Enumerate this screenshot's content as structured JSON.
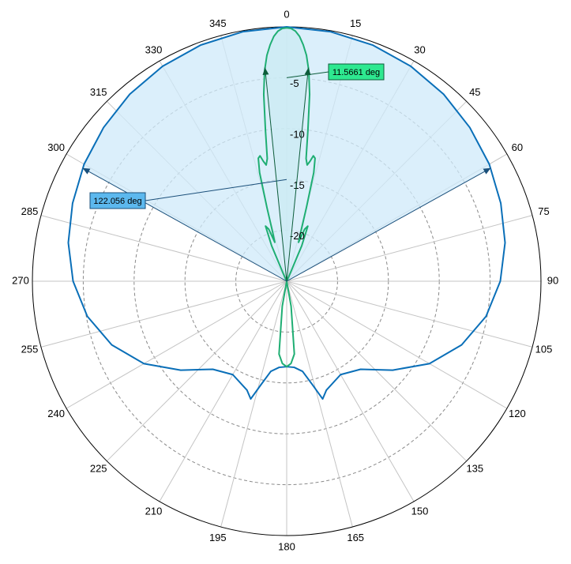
{
  "chart_data": {
    "type": "polar",
    "theta_direction": "clockwise",
    "theta_zero": "top",
    "angle_ticks": [
      0,
      15,
      30,
      45,
      60,
      75,
      90,
      105,
      120,
      135,
      150,
      165,
      180,
      195,
      210,
      225,
      240,
      255,
      270,
      285,
      300,
      315,
      330,
      345
    ],
    "r_range": [
      -25,
      0
    ],
    "r_ticks": [
      -5,
      -10,
      -15,
      -20
    ],
    "grid": true,
    "series": [
      {
        "color": "#0a6fb8",
        "fill": "#cfeaf9",
        "beamwidth_deg": 122.056,
        "points": [
          [
            0,
            0
          ],
          [
            10,
            -0.1
          ],
          [
            20,
            -0.3
          ],
          [
            30,
            -0.6
          ],
          [
            40,
            -1.0
          ],
          [
            50,
            -1.5
          ],
          [
            60,
            -2.0
          ],
          [
            70,
            -2.6
          ],
          [
            80,
            -3.2
          ],
          [
            90,
            -4.0
          ],
          [
            100,
            -5.1
          ],
          [
            110,
            -6.7
          ],
          [
            120,
            -8.8
          ],
          [
            130,
            -11.4
          ],
          [
            140,
            -13.7
          ],
          [
            150,
            -14.4
          ],
          [
            160,
            -13.6
          ],
          [
            163,
            -12.9
          ],
          [
            166,
            -14.5
          ],
          [
            170,
            -16.0
          ],
          [
            175,
            -16.5
          ],
          [
            180,
            -16.6
          ],
          [
            185,
            -16.5
          ],
          [
            190,
            -16.0
          ],
          [
            194,
            -14.5
          ],
          [
            197,
            -12.9
          ],
          [
            200,
            -13.6
          ],
          [
            210,
            -14.4
          ],
          [
            220,
            -13.7
          ],
          [
            230,
            -11.4
          ],
          [
            240,
            -8.8
          ],
          [
            250,
            -6.7
          ],
          [
            260,
            -5.1
          ],
          [
            270,
            -4.0
          ],
          [
            280,
            -3.2
          ],
          [
            290,
            -2.6
          ],
          [
            300,
            -2.0
          ],
          [
            310,
            -1.5
          ],
          [
            320,
            -1.0
          ],
          [
            330,
            -0.6
          ],
          [
            340,
            -0.3
          ],
          [
            350,
            -0.1
          ],
          [
            360,
            0
          ]
        ]
      },
      {
        "color": "#1fae73",
        "fill": "#bff0df",
        "beamwidth_deg": 11.5661,
        "points": [
          [
            0,
            -0.1
          ],
          [
            1,
            -0.15
          ],
          [
            2,
            -0.4
          ],
          [
            3,
            -0.9
          ],
          [
            4,
            -1.7
          ],
          [
            5,
            -2.7
          ],
          [
            6,
            -4.2
          ],
          [
            7,
            -6.5
          ],
          [
            8,
            -10.0
          ],
          [
            9,
            -12.8
          ],
          [
            10,
            -13.4
          ],
          [
            11,
            -13.0
          ],
          [
            12,
            -12.4
          ],
          [
            13,
            -12.6
          ],
          [
            14,
            -14.0
          ],
          [
            15,
            -17.5
          ],
          [
            16,
            -20.0
          ],
          [
            17,
            -21.0
          ],
          [
            19,
            -19.6
          ],
          [
            21,
            -19.2
          ],
          [
            23,
            -21.2
          ],
          [
            25,
            -24.5
          ],
          [
            27,
            -25
          ],
          [
            30,
            -25
          ],
          [
            90,
            -25
          ],
          [
            160,
            -25
          ],
          [
            170,
            -22.5
          ],
          [
            174,
            -17.8
          ],
          [
            177,
            -16.9
          ],
          [
            180,
            -16.6
          ],
          [
            183,
            -16.9
          ],
          [
            186,
            -17.8
          ],
          [
            190,
            -22.5
          ],
          [
            200,
            -25
          ],
          [
            270,
            -25
          ],
          [
            330,
            -25
          ],
          [
            333,
            -25
          ],
          [
            335,
            -24.5
          ],
          [
            337,
            -21.2
          ],
          [
            339,
            -19.2
          ],
          [
            341,
            -19.6
          ],
          [
            343,
            -21.0
          ],
          [
            344,
            -20.0
          ],
          [
            345,
            -17.5
          ],
          [
            346,
            -14.0
          ],
          [
            347,
            -12.6
          ],
          [
            348,
            -12.4
          ],
          [
            349,
            -13.0
          ],
          [
            350,
            -13.4
          ],
          [
            351,
            -12.8
          ],
          [
            352,
            -10.0
          ],
          [
            353,
            -6.5
          ],
          [
            354,
            -4.2
          ],
          [
            355,
            -2.7
          ],
          [
            356,
            -1.7
          ],
          [
            357,
            -0.9
          ],
          [
            358,
            -0.4
          ],
          [
            359,
            -0.15
          ],
          [
            360,
            -0.1
          ]
        ]
      }
    ],
    "annotations": [
      {
        "text": "122.056 deg",
        "box_color": "#5cb8ee",
        "arrow_angles": [
          299,
          61
        ],
        "marker_r": -3.8
      },
      {
        "text": "11.5661 deg",
        "box_color": "#2ee890",
        "arrow_angles": [
          354.2,
          5.8
        ],
        "marker_r": -3.2
      }
    ]
  }
}
